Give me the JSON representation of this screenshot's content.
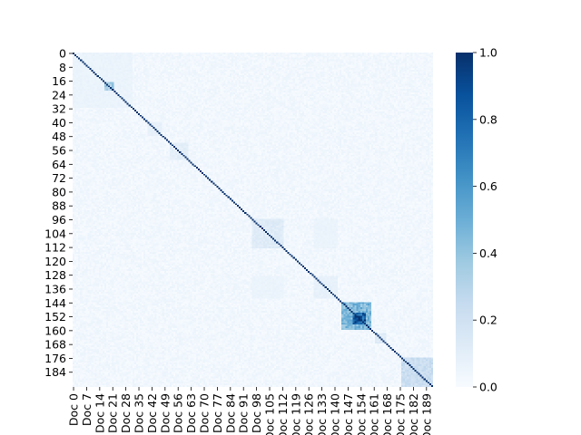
{
  "chart_data": {
    "type": "heatmap",
    "title": "",
    "xlabel": "",
    "ylabel": "",
    "size": 193,
    "row_labels": [
      "0",
      "8",
      "16",
      "24",
      "32",
      "40",
      "48",
      "56",
      "64",
      "72",
      "80",
      "88",
      "96",
      "104",
      "112",
      "120",
      "128",
      "136",
      "144",
      "152",
      "160",
      "168",
      "176",
      "184"
    ],
    "row_label_indices": [
      0,
      8,
      16,
      24,
      32,
      40,
      48,
      56,
      64,
      72,
      80,
      88,
      96,
      104,
      112,
      120,
      128,
      136,
      144,
      152,
      160,
      168,
      176,
      184
    ],
    "col_labels": [
      "Doc 0",
      "Doc 7",
      "Doc 14",
      "Doc 21",
      "Doc 28",
      "Doc 35",
      "Doc 42",
      "Doc 49",
      "Doc 56",
      "Doc 63",
      "Doc 70",
      "Doc 77",
      "Doc 84",
      "Doc 91",
      "Doc 98",
      "Doc 105",
      "Doc 112",
      "Doc 119",
      "Doc 126",
      "Doc 133",
      "Doc 140",
      "Doc 147",
      "Doc 154",
      "Doc 161",
      "Doc 168",
      "Doc 175",
      "Doc 182",
      "Doc 189"
    ],
    "col_label_indices": [
      0,
      7,
      14,
      21,
      28,
      35,
      42,
      49,
      56,
      63,
      70,
      77,
      84,
      91,
      98,
      105,
      112,
      119,
      126,
      133,
      140,
      147,
      154,
      161,
      168,
      175,
      182,
      189
    ],
    "diagonal_value": 1.0,
    "background_range": [
      0.0,
      0.06
    ],
    "blocks": [
      {
        "rows": [
          0,
          32
        ],
        "cols": [
          0,
          32
        ],
        "value": 0.06
      },
      {
        "rows": [
          17,
          22
        ],
        "cols": [
          17,
          22
        ],
        "value": 0.35
      },
      {
        "rows": [
          40,
          48
        ],
        "cols": [
          40,
          48
        ],
        "value": 0.08
      },
      {
        "rows": [
          52,
          62
        ],
        "cols": [
          52,
          62
        ],
        "value": 0.1
      },
      {
        "rows": [
          96,
          113
        ],
        "cols": [
          96,
          113
        ],
        "value": 0.12
      },
      {
        "rows": [
          96,
          113
        ],
        "cols": [
          129,
          142
        ],
        "value": 0.06
      },
      {
        "rows": [
          129,
          142
        ],
        "cols": [
          96,
          113
        ],
        "value": 0.06
      },
      {
        "rows": [
          129,
          142
        ],
        "cols": [
          129,
          142
        ],
        "value": 0.08
      },
      {
        "rows": [
          144,
          160
        ],
        "cols": [
          144,
          160
        ],
        "value": 0.45
      },
      {
        "rows": [
          150,
          157
        ],
        "cols": [
          150,
          157
        ],
        "value": 0.85
      },
      {
        "rows": [
          162,
          168
        ],
        "cols": [
          162,
          168
        ],
        "value": 0.12
      },
      {
        "rows": [
          176,
          193
        ],
        "cols": [
          176,
          193
        ],
        "value": 0.22
      }
    ],
    "colorbar": {
      "min": 0.0,
      "max": 1.0,
      "ticks": [
        "0.0",
        "0.2",
        "0.4",
        "0.6",
        "0.8",
        "1.0"
      ],
      "tick_values": [
        0.0,
        0.2,
        0.4,
        0.6,
        0.8,
        1.0
      ],
      "colormap": "Blues",
      "color_low": "#f7fbff",
      "color_high": "#08306b"
    },
    "grid": false,
    "legend": "none"
  }
}
